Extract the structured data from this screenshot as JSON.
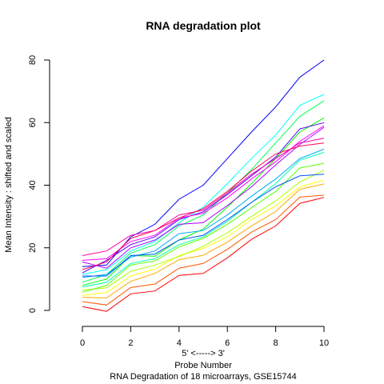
{
  "chart_data": {
    "type": "line",
    "title": "RNA degradation plot",
    "xlabel": "Probe Number",
    "xlabel_sub": "5' <-----> 3'",
    "ylabel": "Mean Intensity : shifted and scaled",
    "caption": "RNA Degradation of 18 microarrays, GSE15744",
    "xlim": [
      0,
      10
    ],
    "ylim": [
      0,
      80
    ],
    "x_ticks": [
      "0",
      "2",
      "4",
      "6",
      "8",
      "10"
    ],
    "y_ticks": [
      "0",
      "20",
      "40",
      "60",
      "80"
    ],
    "x": [
      0,
      1,
      2,
      3,
      4,
      5,
      6,
      7,
      8,
      9,
      10
    ],
    "series": [
      {
        "color": "#ff0000",
        "values": [
          1.2,
          -0.3,
          5.3,
          6.2,
          11.2,
          11.8,
          16.8,
          22.7,
          27.0,
          34.2,
          36.1
        ]
      },
      {
        "color": "#ff5500",
        "values": [
          2.8,
          1.7,
          7.3,
          8.4,
          13.5,
          15.0,
          19.5,
          25.0,
          29.0,
          36.2,
          36.8
        ]
      },
      {
        "color": "#ffaa00",
        "values": [
          4.2,
          4.0,
          9.3,
          11.8,
          16.2,
          17.6,
          21.8,
          27.0,
          31.6,
          38.7,
          40.4
        ]
      },
      {
        "color": "#ffff00",
        "values": [
          4.8,
          5.7,
          11.0,
          13.2,
          17.5,
          19.8,
          23.5,
          29.0,
          33.4,
          39.5,
          41.6
        ]
      },
      {
        "color": "#aaff00",
        "values": [
          6.5,
          7.2,
          12.5,
          14.5,
          17.2,
          20.5,
          24.8,
          30.0,
          35.0,
          41.0,
          44.8
        ]
      },
      {
        "color": "#55ff00",
        "values": [
          5.8,
          8.0,
          14.5,
          15.8,
          20.3,
          23.0,
          27.5,
          32.8,
          38.0,
          45.5,
          47.0
        ]
      },
      {
        "color": "#00ff00",
        "values": [
          8.0,
          10.0,
          17.5,
          17.3,
          22.5,
          26.0,
          33.0,
          40.5,
          48.5,
          57.0,
          61.5
        ]
      },
      {
        "color": "#00ff55",
        "values": [
          9.0,
          11.5,
          18.3,
          21.0,
          27.0,
          30.5,
          37.5,
          45.0,
          53.5,
          62.0,
          67.0
        ]
      },
      {
        "color": "#00ffaa",
        "values": [
          7.5,
          9.0,
          15.0,
          16.5,
          21.0,
          23.5,
          28.5,
          34.5,
          40.5,
          48.0,
          50.5
        ]
      },
      {
        "color": "#00ffff",
        "values": [
          11.5,
          13.0,
          19.0,
          22.0,
          28.0,
          33.0,
          40.5,
          48.5,
          56.0,
          65.5,
          69.0
        ]
      },
      {
        "color": "#00aaff",
        "values": [
          10.5,
          11.5,
          17.0,
          19.0,
          24.5,
          25.5,
          30.5,
          36.5,
          42.0,
          48.5,
          51.5
        ]
      },
      {
        "color": "#0055ff",
        "values": [
          11.0,
          11.0,
          17.5,
          18.0,
          22.5,
          24.0,
          29.0,
          34.5,
          39.5,
          43.0,
          43.5
        ]
      },
      {
        "color": "#0000ff",
        "values": [
          14.0,
          14.5,
          23.5,
          27.5,
          35.5,
          40.0,
          48.5,
          57.0,
          65.0,
          74.5,
          80.0
        ]
      },
      {
        "color": "#5500ff",
        "values": [
          12.0,
          16.0,
          21.0,
          23.5,
          29.0,
          31.5,
          37.0,
          43.0,
          49.0,
          58.0,
          60.0
        ]
      },
      {
        "color": "#aa00ff",
        "values": [
          15.5,
          13.5,
          20.0,
          22.5,
          27.5,
          28.0,
          33.5,
          39.5,
          46.5,
          53.0,
          58.5
        ]
      },
      {
        "color": "#ff00ff",
        "values": [
          16.0,
          16.5,
          22.0,
          24.0,
          29.5,
          31.0,
          36.0,
          42.0,
          47.5,
          54.0,
          59.0
        ]
      },
      {
        "color": "#ff00aa",
        "values": [
          17.5,
          19.0,
          24.0,
          25.5,
          30.5,
          32.0,
          37.5,
          43.5,
          48.5,
          53.5,
          55.0
        ]
      },
      {
        "color": "#ff0055",
        "values": [
          13.0,
          15.5,
          23.0,
          25.5,
          29.5,
          32.5,
          38.0,
          44.5,
          50.0,
          52.5,
          53.5
        ]
      }
    ]
  }
}
